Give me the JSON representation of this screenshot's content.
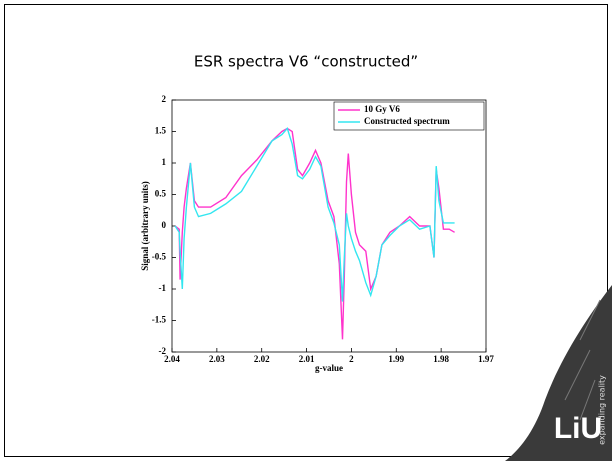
{
  "chart_data": {
    "type": "line",
    "title": "ESR spectra V6 “constructed”",
    "x_label": "g-value",
    "y_label": "Signal (arbitrary units)",
    "x": [
      2.0393,
      2.0384,
      2.0382,
      2.0377,
      2.0373,
      2.0368,
      2.0359,
      2.035,
      2.0341,
      2.0314,
      2.028,
      2.0245,
      2.0211,
      2.0177,
      2.0155,
      2.0143,
      2.0132,
      2.012,
      2.0109,
      2.0093,
      2.008,
      2.0068,
      2.0052,
      2.0039,
      2.0027,
      2.002,
      2.0016,
      2.0011,
      2.0007,
      2.0,
      1.9991,
      1.9982,
      1.9968,
      1.9957,
      1.9945,
      1.9932,
      1.9914,
      1.9893,
      1.987,
      1.9848,
      1.9825,
      1.9816,
      1.9811,
      1.9805,
      1.9795,
      1.9782,
      1.977
    ],
    "series": [
      {
        "name": "10 Gy V6",
        "color": "#ff33cc",
        "values": [
          0,
          -0.05,
          -0.85,
          -0.1,
          0.3,
          0.6,
          1.0,
          0.4,
          0.3,
          0.3,
          0.45,
          0.8,
          1.05,
          1.35,
          1.5,
          1.55,
          1.5,
          0.9,
          0.8,
          1.0,
          1.2,
          1.0,
          0.4,
          0.15,
          -0.6,
          -1.8,
          -0.8,
          0.7,
          1.15,
          0.5,
          -0.1,
          -0.3,
          -0.4,
          -1.0,
          -0.8,
          -0.3,
          -0.1,
          0.0,
          0.15,
          0.0,
          0.0,
          -0.5,
          0.9,
          0.6,
          -0.05,
          -0.05,
          -0.1
        ]
      },
      {
        "name": "Constructed spectrum",
        "color": "#33e6f0",
        "values": [
          0,
          -0.1,
          -0.4,
          -1.0,
          -0.2,
          0.3,
          1.0,
          0.3,
          0.15,
          0.2,
          0.35,
          0.55,
          0.95,
          1.35,
          1.45,
          1.55,
          1.3,
          0.8,
          0.75,
          0.9,
          1.1,
          0.95,
          0.3,
          0.05,
          -0.3,
          -1.2,
          -0.5,
          0.2,
          0.0,
          -0.2,
          -0.4,
          -0.55,
          -0.9,
          -1.1,
          -0.8,
          -0.3,
          -0.15,
          0.0,
          0.1,
          -0.05,
          0.0,
          -0.5,
          0.95,
          0.4,
          0.05,
          0.05,
          0.05
        ]
      }
    ],
    "xlim": [
      2.04,
      1.97
    ],
    "xticks": [
      2.04,
      2.03,
      2.02,
      2.01,
      2,
      1.99,
      1.98,
      1.97
    ],
    "ylim": [
      -2,
      2
    ],
    "yticks": [
      -2,
      -1.5,
      -1,
      -0.5,
      0,
      0.5,
      1,
      1.5,
      2
    ],
    "legend": "upper right",
    "grid": false
  },
  "logo": {
    "text": "LiU",
    "tagline": "expanding reality"
  }
}
